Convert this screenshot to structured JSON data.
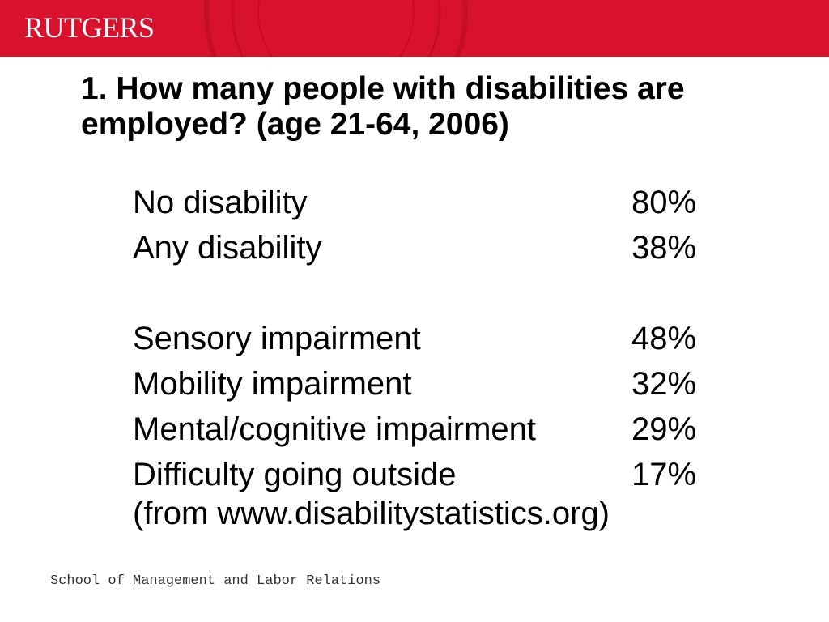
{
  "header": {
    "logo_text": "RUTGERS",
    "band_color": "#d8112c"
  },
  "title": "1.  How many people with disabilities are employed? (age 21-64, 2006)",
  "stats": {
    "group1": [
      {
        "label": "No disability",
        "value": "80%"
      },
      {
        "label": "Any disability",
        "value": "38%"
      }
    ],
    "group2": [
      {
        "label": "Sensory impairment",
        "value": "48%"
      },
      {
        "label": "Mobility impairment",
        "value": "32%"
      },
      {
        "label": "Mental/cognitive impairment",
        "value": "29%"
      },
      {
        "label": "Difficulty going outside",
        "value": "17%"
      }
    ]
  },
  "source_note": "(from www.disabilitystatistics.org)",
  "footer": {
    "text": "School of Management and Labor Relations"
  }
}
